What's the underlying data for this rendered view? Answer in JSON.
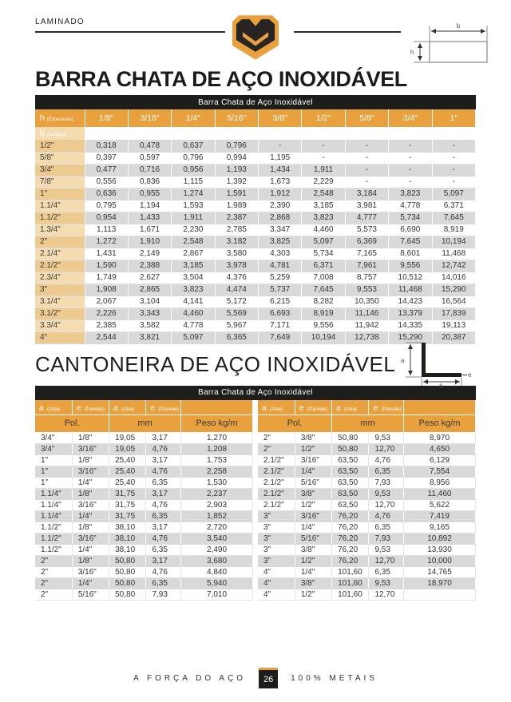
{
  "page": {
    "section_label": "LAMINADO",
    "title_flat_bar": "BARRA CHATA DE AÇO INOXIDÁVEL",
    "title_angle": "CANTONEIRA DE AÇO INOXIDÁVEL"
  },
  "colors": {
    "gold": "#E8A13C",
    "black_bar": "#1d1d1b",
    "row_gray": "#d9d9d9",
    "tan_light": "#F4DCB0",
    "tan_dark": "#EDCA90"
  },
  "flat_diagram": {
    "width_label": "b",
    "height_label": "h"
  },
  "angle_diagram": {
    "leg_label_vertical": "a",
    "leg_label_horizontal": "a",
    "thickness_label": "e"
  },
  "flat_bar_table": {
    "title": "Barra Chata de Aço Inoxidável",
    "corner": {
      "main": "h",
      "sub": "(Espessura)"
    },
    "b_header": {
      "main": "b",
      "sub": "(Largura)"
    },
    "thickness_columns": [
      "1/8\"",
      "3/16\"",
      "1/4\"",
      "5/16\"",
      "3/8\"",
      "1/2\"",
      "5/8\"",
      "3/4\"",
      "1\""
    ],
    "rows": [
      {
        "b": "1/2\"",
        "values": [
          "0,318",
          "0,478",
          "0,637",
          "0,796",
          "-",
          "-",
          "-",
          "-",
          "-"
        ]
      },
      {
        "b": "5/8\"",
        "values": [
          "0,397",
          "0,597",
          "0,796",
          "0,994",
          "1,195",
          "-",
          "-",
          "-",
          "-"
        ]
      },
      {
        "b": "3/4\"",
        "values": [
          "0,477",
          "0,716",
          "0,956",
          "1,193",
          "1,434",
          "1,911",
          "-",
          "-",
          "-"
        ]
      },
      {
        "b": "7/8\"",
        "values": [
          "0,556",
          "0,836",
          "1,115",
          "1,392",
          "1,673",
          "2,229",
          "-",
          "-",
          "-"
        ]
      },
      {
        "b": "1\"",
        "values": [
          "0,636",
          "0,955",
          "1,274",
          "1,591",
          "1,912",
          "2,548",
          "3,184",
          "3,823",
          "5,097"
        ]
      },
      {
        "b": "1.1/4\"",
        "values": [
          "0,795",
          "1,194",
          "1,593",
          "1,989",
          "2,390",
          "3,185",
          "3,981",
          "4,778",
          "6,371"
        ]
      },
      {
        "b": "1.1/2\"",
        "values": [
          "0,954",
          "1,433",
          "1,911",
          "2,387",
          "2,868",
          "3,823",
          "4,777",
          "5,734",
          "7,645"
        ]
      },
      {
        "b": "1.3/4\"",
        "values": [
          "1,113",
          "1,671",
          "2,230",
          "2,785",
          "3,347",
          "4,460",
          "5,573",
          "6,690",
          "8,919"
        ]
      },
      {
        "b": "2\"",
        "values": [
          "1,272",
          "1,910",
          "2,548",
          "3,182",
          "3,825",
          "5,097",
          "6,369",
          "7,645",
          "10,194"
        ]
      },
      {
        "b": "2.1/4\"",
        "values": [
          "1,431",
          "2,149",
          "2,867",
          "3,580",
          "4,303",
          "5,734",
          "7,165",
          "8,601",
          "11,468"
        ]
      },
      {
        "b": "2.1/2\"",
        "values": [
          "1,590",
          "2,388",
          "3,185",
          "3,978",
          "4,781",
          "6,371",
          "7,961",
          "9,556",
          "12,742"
        ]
      },
      {
        "b": "2.3/4\"",
        "values": [
          "1,749",
          "2,627",
          "3,504",
          "4,376",
          "5,259",
          "7,008",
          "8,757",
          "10,512",
          "14,016"
        ]
      },
      {
        "b": "3\"",
        "values": [
          "1,908",
          "2,865",
          "3,823",
          "4,474",
          "5,737",
          "7,645",
          "9,553",
          "11,468",
          "15,290"
        ]
      },
      {
        "b": "3.1/4\"",
        "values": [
          "2,067",
          "3,104",
          "4,141",
          "5,172",
          "6,215",
          "8,282",
          "10,350",
          "14,423",
          "16,564"
        ]
      },
      {
        "b": "3.1/2\"",
        "values": [
          "2,226",
          "3,343",
          "4,460",
          "5,569",
          "6,693",
          "8,919",
          "11,146",
          "13,379",
          "17,839"
        ]
      },
      {
        "b": "3.3/4\"",
        "values": [
          "2,385",
          "3,582",
          "4,778",
          "5,967",
          "7,171",
          "9,556",
          "11,942",
          "14,335",
          "19,113"
        ]
      },
      {
        "b": "4\"",
        "values": [
          "2,544",
          "3,821",
          "5,097",
          "6,365",
          "7,649",
          "10,194",
          "12,738",
          "15,290",
          "20,387"
        ]
      }
    ]
  },
  "angle_table": {
    "title": "Barra Chata de Aço Inoxidável",
    "header": {
      "a_main": "a",
      "a_sub": "(Aba)",
      "e_main": "e",
      "e_sub": "(Parede)",
      "pol": "Pol.",
      "mm": "mm",
      "peso": "Peso kg/m"
    },
    "left_rows": [
      [
        "3/4\"",
        "1/8\"",
        "19,05",
        "3,17",
        "1,270"
      ],
      [
        "3/4\"",
        "3/16\"",
        "19,05",
        "4,76",
        "1,208"
      ],
      [
        "1\"",
        "1/8\"",
        "25,40",
        "3,17",
        "1,753"
      ],
      [
        "1\"",
        "3/16\"",
        "25,40",
        "4,76",
        "2,258"
      ],
      [
        "1\"",
        "1/4\"",
        "25,40",
        "6,35",
        "1,530"
      ],
      [
        "1.1/4\"",
        "1/8\"",
        "31,75",
        "3,17",
        "2,237"
      ],
      [
        "1.1/4\"",
        "3/16\"",
        "31,75",
        "4,76",
        "2,903"
      ],
      [
        "1.1/4\"",
        "1/4\"",
        "31,75",
        "6,35",
        "1,852"
      ],
      [
        "1.1/2\"",
        "1/8\"",
        "38,10",
        "3,17",
        "2,720"
      ],
      [
        "1.1/2\"",
        "3/16\"",
        "38,10",
        "4,76",
        "3,540"
      ],
      [
        "1.1/2\"",
        "1/4\"",
        "38,10",
        "6,35",
        "2,490"
      ],
      [
        "2\"",
        "1/8\"",
        "50,80",
        "3,17",
        "3,680"
      ],
      [
        "2\"",
        "3/16\"",
        "50,80",
        "4,76",
        "4,840"
      ],
      [
        "2\"",
        "1/4\"",
        "50,80",
        "6,35",
        "5,940"
      ],
      [
        "2\"",
        "5/16\"",
        "50,80",
        "7,93",
        "7,010"
      ]
    ],
    "right_rows": [
      [
        "2\"",
        "3/8\"",
        "50,80",
        "9,53",
        "8,970"
      ],
      [
        "2\"",
        "1/2\"",
        "50,80",
        "12,70",
        "4,650"
      ],
      [
        "2.1/2\"",
        "3/16\"",
        "63,50",
        "4,76",
        "6,129"
      ],
      [
        "2.1/2\"",
        "1/4\"",
        "63,50",
        "6,35",
        "7,554"
      ],
      [
        "2.1/2\"",
        "5/16\"",
        "63,50",
        "7,93",
        "8,956"
      ],
      [
        "2.1/2\"",
        "3/8\"",
        "63,50",
        "9,53",
        "11,460"
      ],
      [
        "2.1/2\"",
        "1/2\"",
        "63,50",
        "12,70",
        "5,622"
      ],
      [
        "3\"",
        "3/16\"",
        "76,20",
        "4,76",
        "7,419"
      ],
      [
        "3\"",
        "1/4\"",
        "76,20",
        "6,35",
        "9,165"
      ],
      [
        "3\"",
        "5/16\"",
        "76,20",
        "7,93",
        "10,892"
      ],
      [
        "3\"",
        "3/8\"",
        "76,20",
        "9,53",
        "13,930"
      ],
      [
        "3\"",
        "1/2\"",
        "76,20",
        "12,70",
        "10,000"
      ],
      [
        "4\"",
        "1/4\"",
        "101,60",
        "6,35",
        "14,765"
      ],
      [
        "4\"",
        "3/8\"",
        "101,60",
        "9,53",
        "18,970"
      ],
      [
        "4\"",
        "1/2\"",
        "101,60",
        "12,70",
        ""
      ]
    ]
  },
  "footer": {
    "left": "A FORÇA DO AÇO",
    "page_number": "26",
    "right": "100% METAIS"
  }
}
